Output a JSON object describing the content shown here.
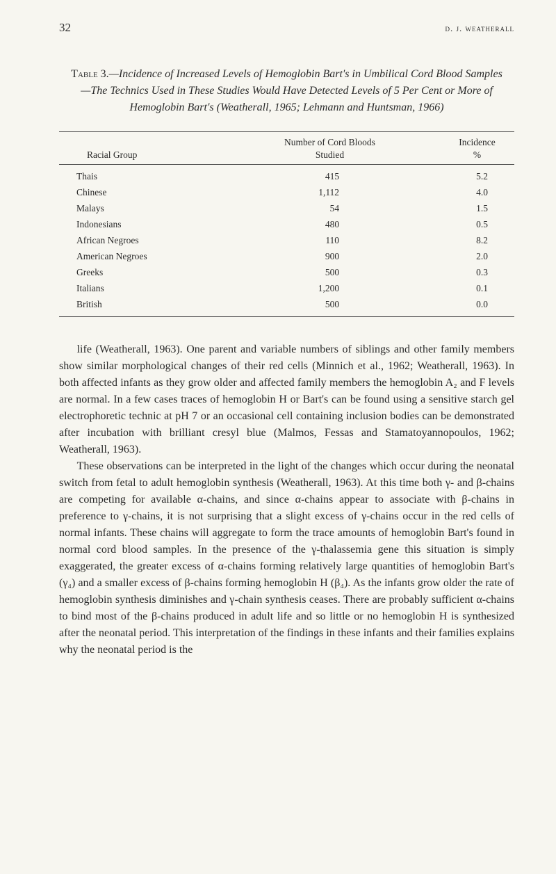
{
  "header": {
    "page_number": "32",
    "author": "d. j. weatherall"
  },
  "table": {
    "caption_lead": "Table 3.",
    "caption_rest": "—Incidence of Increased Levels of Hemoglobin Bart's in Umbilical Cord Blood Samples—The Technics Used in These Studies Would Have Detected Levels of 5 Per Cent or More of Hemoglobin Bart's (Weatherall, 1965; Lehmann and Huntsman, 1966)",
    "columns": {
      "group": "Racial Group",
      "number_l1": "Number of Cord Bloods",
      "number_l2": "Studied",
      "incidence_l1": "Incidence",
      "incidence_l2": "%"
    },
    "rows": [
      {
        "group": "Thais",
        "number": "415",
        "incidence": "5.2"
      },
      {
        "group": "Chinese",
        "number": "1,112",
        "incidence": "4.0"
      },
      {
        "group": "Malays",
        "number": "54",
        "incidence": "1.5"
      },
      {
        "group": "Indonesians",
        "number": "480",
        "incidence": "0.5"
      },
      {
        "group": "African Negroes",
        "number": "110",
        "incidence": "8.2"
      },
      {
        "group": "American Negroes",
        "number": "900",
        "incidence": "2.0"
      },
      {
        "group": "Greeks",
        "number": "500",
        "incidence": "0.3"
      },
      {
        "group": "Italians",
        "number": "1,200",
        "incidence": "0.1"
      },
      {
        "group": "British",
        "number": "500",
        "incidence": "0.0"
      }
    ]
  },
  "paragraphs": {
    "p1": "life (Weatherall, 1963). One parent and variable numbers of siblings and other family members show similar morphological changes of their red cells (Minnich et al., 1962; Weatherall, 1963). In both affected infants as they grow older and affected family members the hemoglobin A₂ and F levels are normal. In a few cases traces of hemoglobin H or Bart's can be found using a sensitive starch gel electrophoretic technic at pH 7 or an occasional cell containing inclusion bodies can be demonstrated after incubation with brilliant cresyl blue (Malmos, Fessas and Stamatoyanno­poulos, 1962; Weatherall, 1963).",
    "p2": "These observations can be interpreted in the light of the changes which occur during the neonatal switch from fetal to adult hemoglobin synthesis (Weatherall, 1963). At this time both γ- and β-chains are competing for available α-chains, and since α-chains appear to associate with β-chains in preference to γ-chains, it is not surprising that a slight excess of γ-chains occur in the red cells of normal infants. These chains will aggregate to form the trace amounts of hemoglobin Bart's found in normal cord blood samples. In the presence of the γ-thalassemia gene this situation is simply exaggerated, the greater excess of α-chains form­ing relatively large quantities of hemoglobin Bart's (γ₄) and a smaller excess of β-chains forming hemoglobin H (β₄). As the infants grow older the rate of hemoglobin synthesis diminishes and γ-chain synthesis ceases. There are probably sufficient α-chains to bind most of the β-chains produced in adult life and so little or no hemoglobin H is synthe­sized after the neonatal period. This interpretation of the findings in these infants and their families explains why the neonatal period is the"
  }
}
